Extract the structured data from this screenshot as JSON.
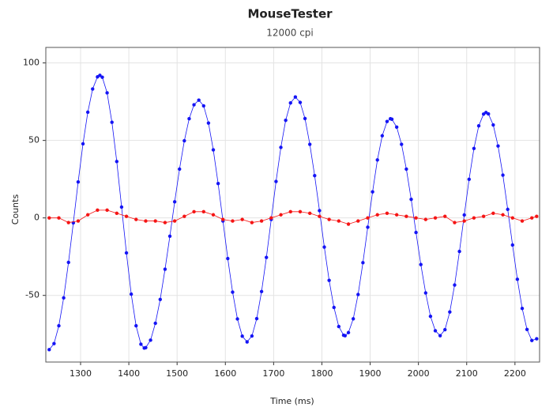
{
  "chart_data": {
    "type": "scatter-line",
    "title": "MouseTester",
    "subtitle": "12000 cpi",
    "x_label": "Time (ms)",
    "y_label": "Counts",
    "xlim": [
      1228,
      2251
    ],
    "ylim": [
      -93,
      110
    ],
    "xticks": [
      1300,
      1400,
      1500,
      1600,
      1700,
      1800,
      1900,
      2000,
      2100,
      2200
    ],
    "yticks": [
      -50,
      0,
      50,
      100
    ],
    "grid": true,
    "series": [
      {
        "color": "#1414f5",
        "x": [
          1235,
          1245,
          1255,
          1265,
          1275,
          1285,
          1295,
          1305,
          1315,
          1325,
          1335,
          1340,
          1345,
          1355,
          1365,
          1375,
          1385,
          1395,
          1405,
          1415,
          1425,
          1432,
          1435,
          1445,
          1455,
          1465,
          1475,
          1485,
          1495,
          1505,
          1515,
          1525,
          1535,
          1545,
          1555,
          1565,
          1575,
          1585,
          1595,
          1605,
          1615,
          1625,
          1635,
          1645,
          1655,
          1665,
          1675,
          1685,
          1695,
          1705,
          1715,
          1725,
          1735,
          1745,
          1755,
          1765,
          1775,
          1785,
          1795,
          1805,
          1815,
          1825,
          1835,
          1845,
          1848,
          1855,
          1865,
          1875,
          1885,
          1895,
          1905,
          1915,
          1925,
          1935,
          1942,
          1945,
          1955,
          1965,
          1975,
          1985,
          1995,
          2005,
          2015,
          2025,
          2035,
          2045,
          2055,
          2065,
          2075,
          2085,
          2095,
          2105,
          2115,
          2125,
          2135,
          2140,
          2145,
          2155,
          2165,
          2175,
          2185,
          2195,
          2205,
          2215,
          2225,
          2235,
          2245
        ],
        "values": [
          -85,
          -81.1,
          -69.6,
          -51.6,
          -28.7,
          -3.2,
          23.2,
          47.8,
          68.2,
          83.2,
          91,
          92,
          90.8,
          80.7,
          61.7,
          36.4,
          7,
          -22.6,
          -49.2,
          -69.6,
          -81.5,
          -84,
          -83.7,
          -78.9,
          -68,
          -52.6,
          -33.1,
          -11.8,
          10.4,
          31.5,
          49.8,
          64,
          73,
          76,
          72.3,
          61.2,
          43.9,
          22.2,
          -2,
          -26.2,
          -47.9,
          -65.2,
          -76.3,
          -80,
          -76.2,
          -65,
          -47.5,
          -25.5,
          -1,
          23.5,
          45.5,
          63,
          74.2,
          78,
          74.5,
          64.1,
          47.5,
          27.3,
          4.7,
          -18.8,
          -40.3,
          -57.8,
          -70.1,
          -75.7,
          -76,
          -74,
          -65.1,
          -49.4,
          -28.9,
          -6,
          16.8,
          37.4,
          53,
          62.2,
          64,
          63.7,
          58.6,
          47.5,
          31.5,
          12,
          -9.4,
          -30.1,
          -48.4,
          -63.5,
          -72.8,
          -76,
          -72.1,
          -60.7,
          -43.3,
          -21.6,
          1.9,
          24.9,
          44.8,
          59.4,
          67,
          68,
          67.1,
          60,
          46.4,
          27.6,
          5.5,
          -17.5,
          -39.6,
          -58.4,
          -72,
          -79.1,
          -78
        ]
      },
      {
        "color": "#f51414",
        "x": [
          1235,
          1255,
          1275,
          1295,
          1315,
          1335,
          1355,
          1375,
          1395,
          1415,
          1435,
          1455,
          1475,
          1495,
          1515,
          1535,
          1555,
          1575,
          1595,
          1615,
          1635,
          1655,
          1675,
          1695,
          1715,
          1735,
          1755,
          1775,
          1795,
          1815,
          1835,
          1855,
          1875,
          1895,
          1915,
          1935,
          1955,
          1975,
          1995,
          2015,
          2035,
          2055,
          2075,
          2095,
          2115,
          2135,
          2155,
          2175,
          2195,
          2215,
          2235,
          2245
        ],
        "values": [
          0,
          0,
          -3,
          -2,
          2,
          5,
          5,
          3,
          1,
          -1,
          -2,
          -2,
          -3,
          -2,
          1,
          4,
          4,
          2,
          -1,
          -2,
          -1,
          -3,
          -2,
          0,
          2,
          4,
          4,
          3,
          1,
          -1,
          -2,
          -4,
          -2,
          0,
          2,
          3,
          2,
          1,
          0,
          -1,
          0,
          1,
          -3,
          -2,
          0,
          1,
          3,
          2,
          0,
          -2,
          0,
          1
        ]
      }
    ]
  }
}
